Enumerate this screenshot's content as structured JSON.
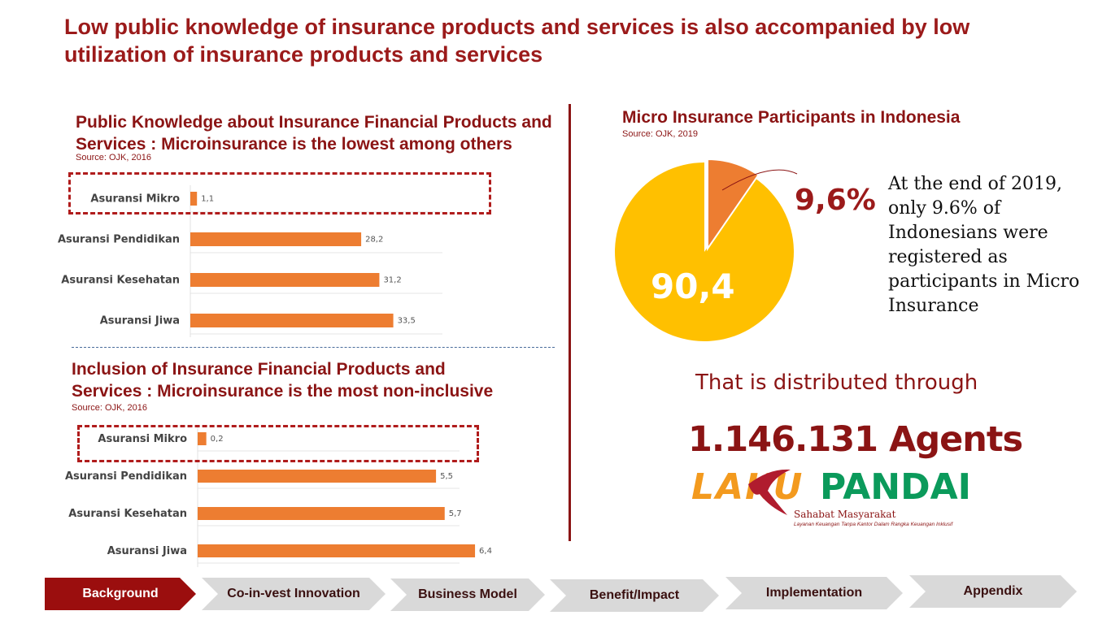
{
  "main_title": "Low public knowledge of insurance products and services is also accompanied by low utilization of insurance products and services",
  "knowledge": {
    "title_line1": "Public Knowledge about Insurance Financial Products and",
    "title_line2": "Services : Microinsurance is the lowest among others",
    "source": "Source: OJK, 2016"
  },
  "inclusion": {
    "title_line1": "Inclusion of Insurance Financial Products and",
    "title_line2": "Services : Microinsurance is the most non-inclusive",
    "source": "Source: OJK, 2016"
  },
  "micro": {
    "title": "Micro Insurance Participants in Indonesia",
    "source": "Source: OJK, 2019",
    "big_label": "90,4",
    "small_label": "9,6%",
    "description": "At the end of 2019, only 9.6% of Indonesians were registered as participants in Micro Insurance"
  },
  "distribution": {
    "text": "That is distributed through",
    "agents": "1.146.131 Agents"
  },
  "logo": {
    "laku": "LAKU",
    "pandai": "PANDAI",
    "tagline": "Sahabat Masyarakat",
    "subline": "Layanan Keuangan Tanpa Kantor Dalam Rangka Keuangan Inklusif"
  },
  "nav": {
    "steps": [
      "Background",
      "Co-in-vest Innovation",
      "Business Model",
      "Benefit/Impact",
      "Implementation",
      "Appendix"
    ],
    "active": 0
  },
  "colors": {
    "accent": "#9b1a1a",
    "bar": "#ed7d31",
    "pie_major": "#ffc000",
    "pie_minor": "#ed7d31"
  },
  "chart_data": [
    {
      "type": "bar",
      "orientation": "horizontal",
      "title": "Public Knowledge about Insurance Financial Products and Services : Microinsurance is the lowest among others",
      "categories": [
        "Asuransi Mikro",
        "Asuransi Pendidikan",
        "Asuransi Kesehatan",
        "Asuransi Jiwa"
      ],
      "values": [
        1.1,
        28.2,
        31.2,
        33.5
      ],
      "value_labels": [
        "1,1",
        "28,2",
        "31,2",
        "33,5"
      ],
      "xlim": [
        0,
        40
      ],
      "highlight": "Asuransi Mikro",
      "grid": true
    },
    {
      "type": "bar",
      "orientation": "horizontal",
      "title": "Inclusion of Insurance Financial Products and Services : Microinsurance is the most non-inclusive",
      "categories": [
        "Asuransi Mikro",
        "Asuransi Pendidikan",
        "Asuransi Kesehatan",
        "Asuransi Jiwa"
      ],
      "values": [
        0.2,
        5.5,
        5.7,
        6.4
      ],
      "value_labels": [
        "0,2",
        "5,5",
        "5,7",
        "6,4"
      ],
      "xlim": [
        0,
        7.6
      ],
      "highlight": "Asuransi Mikro",
      "grid": true
    },
    {
      "type": "pie",
      "title": "Micro Insurance Participants in Indonesia",
      "labels": [
        "90,4",
        "9,6%"
      ],
      "values": [
        90.4,
        9.6
      ]
    }
  ]
}
